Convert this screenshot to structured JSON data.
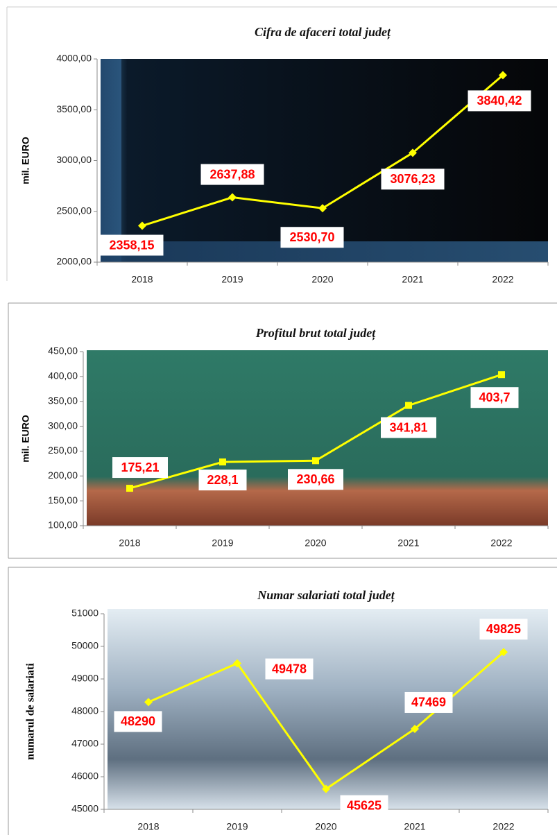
{
  "chart_data": [
    {
      "type": "line",
      "title": "Cifra de afaceri total județ",
      "y_label": "mil. EURO",
      "categories": [
        "2018",
        "2019",
        "2020",
        "2021",
        "2022"
      ],
      "values": [
        2358.15,
        2637.88,
        2530.7,
        3076.23,
        3840.42
      ],
      "value_labels": [
        "2358,15",
        "2637,88",
        "2530,70",
        "3076,23",
        "3840,42"
      ],
      "color": "#ffff00",
      "marker": "diamond",
      "ylim": [
        2000,
        4000
      ],
      "yticks": [
        {
          "value": 2000,
          "label": "2000,00"
        },
        {
          "value": 2500,
          "label": "2500,00"
        },
        {
          "value": 3000,
          "label": "3000,00"
        },
        {
          "value": 3500,
          "label": "3500,00"
        },
        {
          "value": 4000,
          "label": "4000,00"
        }
      ]
    },
    {
      "type": "line",
      "title": "Profitul brut total județ",
      "y_label": "mil. EURO",
      "categories": [
        "2018",
        "2019",
        "2020",
        "2021",
        "2022"
      ],
      "values": [
        175.21,
        228.1,
        230.66,
        341.81,
        403.7
      ],
      "value_labels": [
        "175,21",
        "228,1",
        "230,66",
        "341,81",
        "403,7"
      ],
      "color": "#ffff00",
      "marker": "square",
      "ylim": [
        100,
        450
      ],
      "yticks": [
        {
          "value": 100,
          "label": "100,00"
        },
        {
          "value": 150,
          "label": "150,00"
        },
        {
          "value": 200,
          "label": "200,00"
        },
        {
          "value": 250,
          "label": "250,00"
        },
        {
          "value": 300,
          "label": "300,00"
        },
        {
          "value": 350,
          "label": "350,00"
        },
        {
          "value": 400,
          "label": "400,00"
        },
        {
          "value": 450,
          "label": "450,00"
        }
      ]
    },
    {
      "type": "line",
      "title": "Numar salariati total județ",
      "y_label": "numarul de salariati",
      "categories": [
        "2018",
        "2019",
        "2020",
        "2021",
        "2022"
      ],
      "values": [
        48290,
        49478,
        45625,
        47469,
        49825
      ],
      "color": "#ffff00",
      "marker": "diamond",
      "ylim": [
        45000,
        51000
      ],
      "yticks": [
        45000,
        46000,
        47000,
        48000,
        49000,
        50000,
        51000
      ]
    }
  ]
}
